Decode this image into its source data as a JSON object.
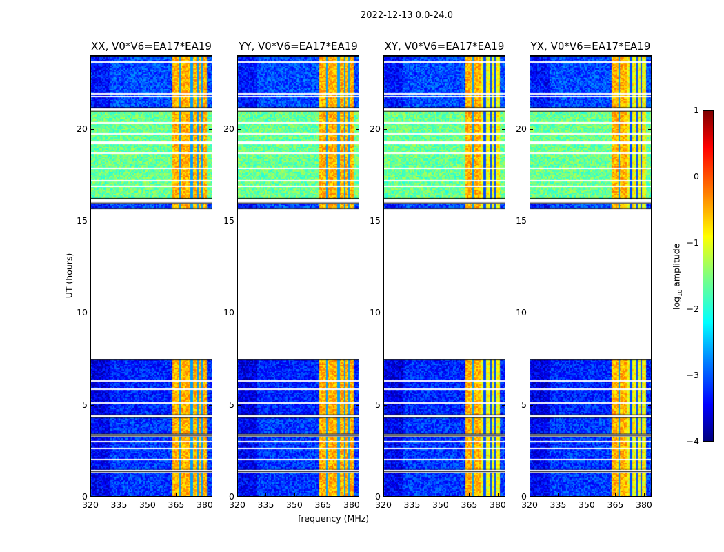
{
  "chart_data": {
    "type": "heatmap",
    "title": "2022-12-13 0.0-24.0",
    "xlabel": "frequency (MHz)",
    "ylabel": "UT (hours)",
    "xlim": [
      320,
      384
    ],
    "ylim": [
      0,
      24
    ],
    "xticks": [
      "320",
      "335",
      "350",
      "365",
      "380"
    ],
    "yticks": [
      "0",
      "5",
      "10",
      "15",
      "20"
    ],
    "colorbar": {
      "label_main": "log",
      "label_sub": "10",
      "label_rest": " amplitude",
      "range": [
        -4,
        1
      ],
      "ticks": [
        "1",
        "0",
        "−1",
        "−2",
        "−3",
        "−4"
      ],
      "colormap": "jet"
    },
    "panels": [
      {
        "title": "XX, V0*V6=EA17*EA19"
      },
      {
        "title": "YY, V0*V6=EA17*EA19"
      },
      {
        "title": "XY, V0*V6=EA17*EA19"
      },
      {
        "title": "YX, V0*V6=EA17*EA19"
      }
    ],
    "time_blocks": [
      {
        "start": 0.0,
        "end": 1.35,
        "background": -3.1
      },
      {
        "start": 1.5,
        "end": 3.3,
        "background": -3.1
      },
      {
        "start": 3.4,
        "end": 4.3,
        "background": -3.1
      },
      {
        "start": 4.45,
        "end": 7.45,
        "background": -3.2
      },
      {
        "start": 15.7,
        "end": 16.0,
        "background": -3.0
      },
      {
        "start": 16.25,
        "end": 21.0,
        "background": -1.6
      },
      {
        "start": 21.2,
        "end": 24.0,
        "background": -3.0
      }
    ],
    "flagged_rows": [
      2.05,
      2.6,
      3.0,
      5.1,
      5.9,
      6.3,
      16.9,
      17.2,
      17.9,
      18.7,
      19.3,
      19.8,
      20.4,
      21.8,
      22.0,
      23.7
    ],
    "rfi_band": {
      "start": 363,
      "end": 381,
      "level": -0.5,
      "gaps": [
        367,
        373,
        376.5,
        378.5
      ]
    }
  }
}
